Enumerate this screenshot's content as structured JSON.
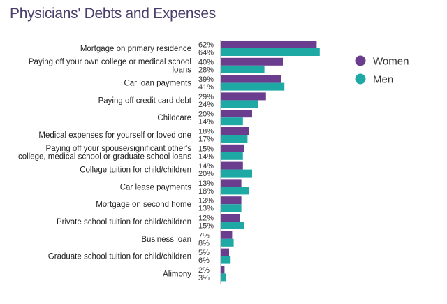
{
  "chart_data": {
    "type": "bar",
    "orientation": "horizontal",
    "title": "Physicians' Debts and Expenses",
    "categories": [
      [
        "Mortgage on primary residence"
      ],
      [
        "Paying off your own college or medical school",
        "loans"
      ],
      [
        "Car loan payments"
      ],
      [
        "Paying off credit card debt"
      ],
      [
        "Childcare"
      ],
      [
        "Medical expenses for yourself or loved one"
      ],
      [
        "Paying off your spouse/significant other's",
        "college, medical school or graduate school loans"
      ],
      [
        "College tuition for child/children"
      ],
      [
        "Car lease payments"
      ],
      [
        "Mortgage on second home"
      ],
      [
        "Private school tuition for child/children"
      ],
      [
        "Business loan"
      ],
      [
        "Graduate school tuition for child/children"
      ],
      [
        "Alimony"
      ]
    ],
    "series": [
      {
        "name": "Women",
        "color": "#6b3d8f",
        "values": [
          62,
          40,
          39,
          29,
          20,
          18,
          15,
          14,
          13,
          13,
          12,
          7,
          5,
          2
        ]
      },
      {
        "name": "Men",
        "color": "#1fa9a5",
        "values": [
          64,
          28,
          41,
          24,
          14,
          17,
          14,
          20,
          18,
          13,
          15,
          8,
          6,
          3
        ]
      }
    ],
    "value_suffix": "%",
    "xlim": [
      0,
      100
    ],
    "grid": false,
    "legend_position": "right"
  }
}
